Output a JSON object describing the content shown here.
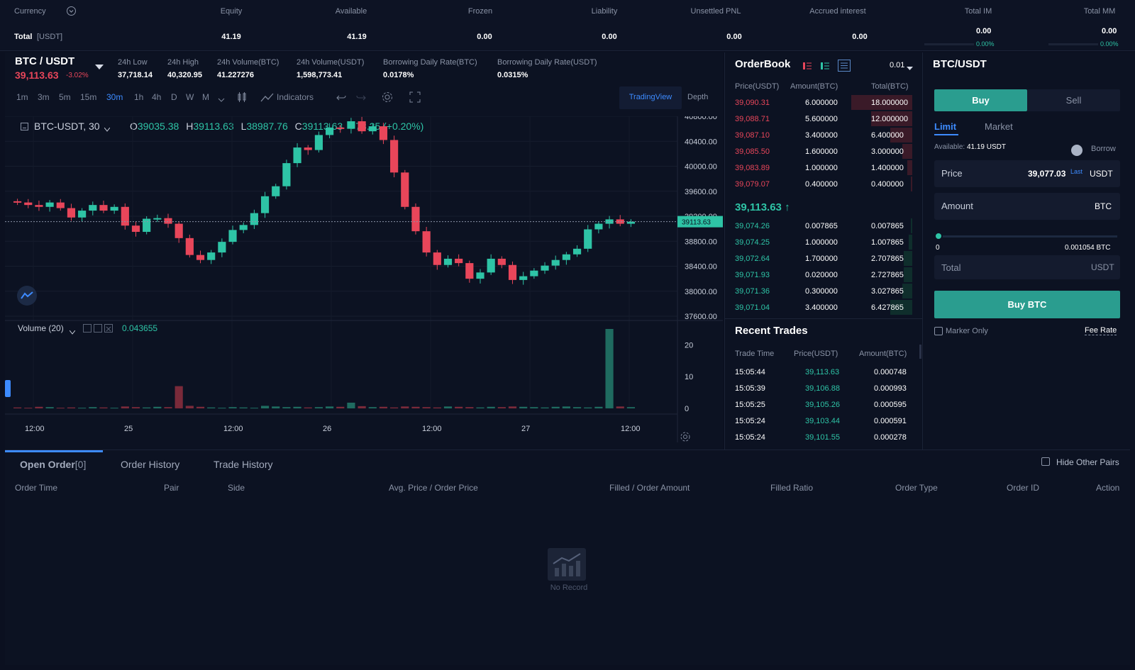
{
  "summary": {
    "headers": [
      "Currency",
      "Equity",
      "Available",
      "Frozen",
      "Liability",
      "Unsettled PNL",
      "Accrued interest",
      "Total IM",
      "Total MM"
    ],
    "total_label": "Total",
    "total_unit": "[USDT]",
    "values": [
      "41.19",
      "41.19",
      "0.00",
      "0.00",
      "0.00",
      "0.00",
      "0.00",
      "0.00"
    ],
    "im_pct": "0.00%",
    "mm_pct": "0.00%"
  },
  "ticker": {
    "pair": "BTC / USDT",
    "price": "39,113.63",
    "change": "-3.02%",
    "stats": [
      {
        "label": "24h Low",
        "value": "37,718.14"
      },
      {
        "label": "24h High",
        "value": "40,320.95"
      },
      {
        "label": "24h Volume(BTC)",
        "value": "41.227276"
      },
      {
        "label": "24h Volume(USDT)",
        "value": "1,598,773.41"
      },
      {
        "label": "Borrowing Daily Rate(BTC)",
        "value": "0.0178%"
      },
      {
        "label": "Borrowing Daily Rate(USDT)",
        "value": "0.0315%"
      }
    ]
  },
  "toolbar": {
    "timeframes": [
      "1m",
      "3m",
      "5m",
      "15m",
      "30m",
      "1h",
      "4h",
      "D",
      "W",
      "M"
    ],
    "active_timeframe": "30m",
    "indicators_label": "Indicators",
    "tradingview_label": "TradingView",
    "depth_label": "Depth"
  },
  "chart_legend": {
    "symbol": "BTC-USDT, 30",
    "o_label": "O",
    "o": "39035.38",
    "h_label": "H",
    "h": "39113.63",
    "l_label": "L",
    "l": "38987.76",
    "c_label": "C",
    "c": "39113.63",
    "chg": "+78.25 (+0.20%)",
    "volume_label": "Volume (20)",
    "volume_value": "0.043655",
    "last_price_tag": "39113.63"
  },
  "chart_data": {
    "type": "candlestick",
    "price_axis": [
      "40800.00",
      "40400.00",
      "40000.00",
      "39600.00",
      "39200.00",
      "38800.00",
      "38400.00",
      "38000.00",
      "37600.00"
    ],
    "price_range": [
      37600,
      40800
    ],
    "volume_axis": [
      "20",
      "10",
      "0"
    ],
    "volume_range": [
      0,
      25
    ],
    "time_labels": [
      "12:00",
      "25",
      "12:00",
      "26",
      "12:00",
      "27",
      "12:00"
    ],
    "close_path": [
      39420,
      39380,
      39350,
      39420,
      39330,
      39180,
      39290,
      39380,
      39290,
      39350,
      39050,
      38950,
      39160,
      39170,
      39080,
      38850,
      38580,
      38500,
      38620,
      38790,
      38980,
      39060,
      39250,
      39520,
      39680,
      40050,
      40300,
      40260,
      40500,
      40620,
      40600,
      40720,
      40560,
      40640,
      40420,
      39900,
      39350,
      38960,
      38620,
      38420,
      38520,
      38450,
      38200,
      38300,
      38520,
      38420,
      38180,
      38240,
      38330,
      38410,
      38500,
      38590,
      38680,
      38990,
      39080,
      39150,
      39080,
      39113
    ],
    "volumes": [
      0.3,
      0.2,
      0.5,
      0.4,
      0.2,
      0.3,
      0.2,
      0.4,
      0.3,
      0.2,
      0.6,
      0.4,
      0.3,
      0.5,
      0.4,
      7,
      0.8,
      0.5,
      0.3,
      0.2,
      0.4,
      0.3,
      0.2,
      0.8,
      0.6,
      0.4,
      0.5,
      0.3,
      0.4,
      0.6,
      0.5,
      1.8,
      0.7,
      0.4,
      0.5,
      0.3,
      0.6,
      0.5,
      0.4,
      0.3,
      0.6,
      0.5,
      0.4,
      0.3,
      0.5,
      0.4,
      0.6,
      0.5,
      0.4,
      0.3,
      0.5,
      0.6,
      0.4,
      0.3,
      0.5,
      25,
      0.6,
      0.4
    ]
  },
  "orderbook": {
    "title": "OrderBook",
    "precision": "0.01",
    "headers": [
      "Price(USDT)",
      "Amount(BTC)",
      "Total(BTC)"
    ],
    "asks": [
      {
        "price": "39,090.31",
        "amount": "6.000000",
        "total": "18.000000",
        "depth": 0.9
      },
      {
        "price": "39,088.71",
        "amount": "5.600000",
        "total": "12.000000",
        "depth": 0.6
      },
      {
        "price": "39,087.10",
        "amount": "3.400000",
        "total": "6.400000",
        "depth": 0.32
      },
      {
        "price": "39,085.50",
        "amount": "1.600000",
        "total": "3.000000",
        "depth": 0.15
      },
      {
        "price": "39,083.89",
        "amount": "1.000000",
        "total": "1.400000",
        "depth": 0.07
      },
      {
        "price": "39,079.07",
        "amount": "0.400000",
        "total": "0.400000",
        "depth": 0.02
      }
    ],
    "last_price": "39,113.63",
    "last_arrow": "↑",
    "bids": [
      {
        "price": "39,074.26",
        "amount": "0.007865",
        "total": "0.007865",
        "depth": 0.01
      },
      {
        "price": "39,074.25",
        "amount": "1.000000",
        "total": "1.007865",
        "depth": 0.05
      },
      {
        "price": "39,072.64",
        "amount": "1.700000",
        "total": "2.707865",
        "depth": 0.13
      },
      {
        "price": "39,071.93",
        "amount": "0.020000",
        "total": "2.727865",
        "depth": 0.13
      },
      {
        "price": "39,071.36",
        "amount": "0.300000",
        "total": "3.027865",
        "depth": 0.15
      },
      {
        "price": "39,071.04",
        "amount": "3.400000",
        "total": "6.427865",
        "depth": 0.32
      }
    ]
  },
  "recent_trades": {
    "title": "Recent Trades",
    "headers": [
      "Trade Time",
      "Price(USDT)",
      "Amount(BTC)"
    ],
    "rows": [
      {
        "time": "15:05:44",
        "price": "39,113.63",
        "amount": "0.000748"
      },
      {
        "time": "15:05:39",
        "price": "39,106.88",
        "amount": "0.000993"
      },
      {
        "time": "15:05:25",
        "price": "39,105.26",
        "amount": "0.000595"
      },
      {
        "time": "15:05:24",
        "price": "39,103.44",
        "amount": "0.000591"
      },
      {
        "time": "15:05:24",
        "price": "39,101.55",
        "amount": "0.000278"
      }
    ]
  },
  "trade_form": {
    "pair": "BTC/USDT",
    "buy_tab": "Buy",
    "sell_tab": "Sell",
    "limit_tab": "Limit",
    "market_tab": "Market",
    "available_label": "Available:",
    "available_value": "41.19 USDT",
    "borrow_label": "Borrow",
    "price_label": "Price",
    "price_value": "39,077.03",
    "price_last": "Last",
    "price_unit": "USDT",
    "amount_label": "Amount",
    "amount_unit": "BTC",
    "slider_min": "0",
    "slider_max": "0.001054 BTC",
    "total_placeholder": "Total",
    "total_unit": "USDT",
    "submit_label": "Buy BTC",
    "maker_only_label": "Marker Only",
    "fee_rate_label": "Fee Rate"
  },
  "orders": {
    "tabs": [
      {
        "label": "Open Order",
        "count": "[0]"
      },
      {
        "label": "Order History"
      },
      {
        "label": "Trade History"
      }
    ],
    "hide_other_pairs": "Hide Other Pairs",
    "columns": [
      "Order Time",
      "Pair",
      "Side",
      "Avg. Price / Order Price",
      "Filled / Order Amount",
      "Filled Ratio",
      "Order Type",
      "Order ID",
      "Action"
    ],
    "empty_text": "No Record"
  },
  "colors": {
    "up": "#2ec4a6",
    "down": "#e8465a",
    "accent": "#2a9d8f",
    "bg": "#0b1020"
  }
}
